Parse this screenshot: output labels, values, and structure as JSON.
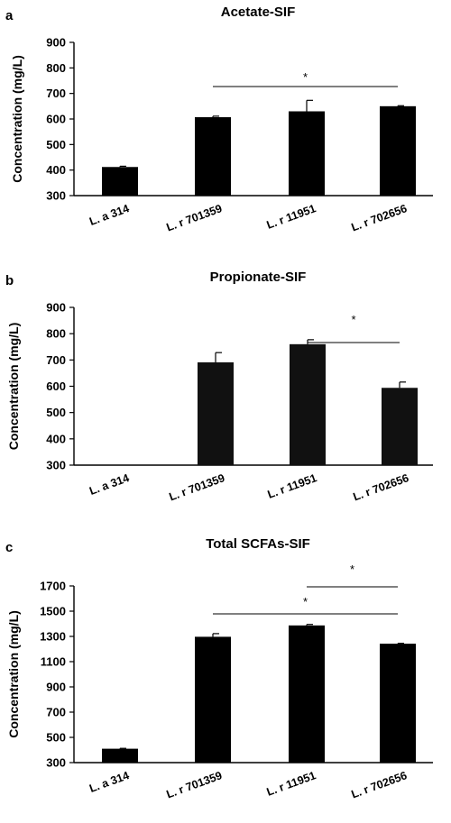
{
  "chart_data": [
    {
      "type": "bar",
      "panel": "a",
      "title": "Acetate-SIF",
      "categories": [
        "L. a 314",
        "L. r 701359",
        "L. r 11951",
        "L. r 702656"
      ],
      "values": [
        412,
        607,
        630,
        650
      ],
      "errors": [
        3,
        4,
        43,
        2
      ],
      "bar_color": "#000000",
      "ylabel": "Concentration (mg/L)",
      "ylim": [
        300,
        900
      ],
      "yticks": [
        300,
        400,
        500,
        600,
        700,
        800,
        900
      ],
      "significance": [
        {
          "from": "L. r 701359",
          "to": "L. r 702656",
          "label": "*"
        }
      ]
    },
    {
      "type": "bar",
      "panel": "b",
      "title": "Propionate-SIF",
      "categories": [
        "L. a 314",
        "L. r 701359",
        "L. r 11951",
        "L. r 702656"
      ],
      "values": [
        300,
        691,
        760,
        594
      ],
      "errors": [
        0,
        37,
        17,
        22
      ],
      "bar_color": "#111111",
      "ylabel": "Concentration (mg/L)",
      "ylim": [
        300,
        900
      ],
      "yticks": [
        300,
        400,
        500,
        600,
        700,
        800,
        900
      ],
      "significance": [
        {
          "from": "L. r 11951",
          "to": "L. r 702656",
          "label": "*"
        }
      ]
    },
    {
      "type": "bar",
      "panel": "c",
      "title": "Total SCFAs-SIF",
      "categories": [
        "L. a 314",
        "L. r 701359",
        "L. r 11951",
        "L. r 702656"
      ],
      "values": [
        410,
        1297,
        1387,
        1242
      ],
      "errors": [
        3,
        25,
        8,
        3
      ],
      "bar_color": "#000000",
      "ylabel": "Concentration (mg/L)",
      "ylim": [
        300,
        1700
      ],
      "yticks": [
        300,
        500,
        700,
        900,
        1100,
        1300,
        1500,
        1700
      ],
      "significance": [
        {
          "from": "L. r 701359",
          "to": "L. r 702656",
          "label": "*"
        },
        {
          "from": "L. r 11951",
          "to": "L. r 702656",
          "label": "*"
        }
      ]
    }
  ]
}
